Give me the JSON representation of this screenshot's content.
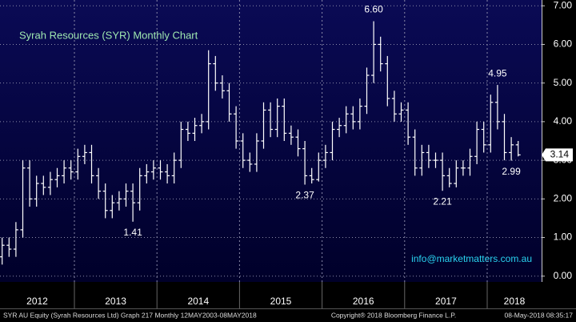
{
  "chart_data": {
    "type": "ohlc",
    "title": "Syrah Resources (SYR) Monthly Chart",
    "watermark": "info@marketmatters.com.au",
    "footer_left": "SYR AU Equity (Syrah Resources Ltd) Graph 217  Monthly 12MAY2003-08MAY2018",
    "footer_center": "Copyright® 2018 Bloomberg Finance L.P.",
    "footer_right": "08-May-2018 08:35:17",
    "x_labels": [
      "2012",
      "2013",
      "2014",
      "2015",
      "2016",
      "2017",
      "2018"
    ],
    "color": "#ffffff",
    "grid": true,
    "ylim": [
      -0.15,
      7.15
    ],
    "yticks": [
      {
        "value": 0,
        "label": "0.00"
      },
      {
        "value": 1,
        "label": "1.00"
      },
      {
        "value": 2,
        "label": "2.00"
      },
      {
        "value": 3,
        "label": "3.00"
      },
      {
        "value": 4,
        "label": "4.00"
      },
      {
        "value": 5,
        "label": "5.00"
      },
      {
        "value": 6,
        "label": "6.00"
      },
      {
        "value": 7,
        "label": "7.00"
      }
    ],
    "open": [
      0.4,
      0.5,
      0.8,
      0.7,
      1.2,
      2.8,
      2.0,
      2.4,
      2.3,
      2.5,
      2.6,
      2.8,
      2.7,
      3.1,
      3.2,
      2.6,
      2.2,
      1.7,
      1.9,
      2.0,
      2.2,
      1.9,
      2.6,
      2.7,
      2.8,
      2.7,
      2.6,
      3.0,
      3.8,
      3.7,
      3.9,
      4.0,
      5.5,
      5.0,
      4.8,
      4.2,
      3.5,
      3.0,
      2.9,
      3.5,
      4.3,
      3.8,
      4.4,
      3.7,
      3.6,
      3.3,
      2.6,
      2.5,
      3.0,
      3.2,
      3.8,
      3.9,
      4.2,
      4.0,
      4.4,
      5.2,
      6.0,
      5.5,
      4.6,
      4.2,
      4.3,
      3.6,
      2.8,
      3.2,
      3.0,
      3.0,
      2.6,
      2.4,
      2.8,
      2.8,
      3.1,
      3.8,
      3.4,
      4.5,
      4.0,
      3.2,
      3.4
    ],
    "high": [
      0.6,
      1.0,
      1.0,
      1.4,
      3.0,
      3.0,
      2.6,
      2.6,
      2.7,
      2.8,
      3.0,
      3.0,
      3.3,
      3.4,
      3.4,
      2.8,
      2.4,
      2.1,
      2.2,
      2.4,
      2.4,
      2.8,
      2.9,
      3.0,
      3.0,
      2.9,
      3.2,
      4.0,
      4.0,
      4.1,
      4.2,
      5.85,
      5.7,
      5.2,
      5.0,
      4.4,
      3.7,
      3.2,
      3.7,
      4.5,
      4.5,
      4.6,
      4.6,
      3.9,
      3.8,
      3.5,
      2.8,
      3.2,
      3.4,
      4.0,
      4.1,
      4.4,
      4.4,
      4.6,
      5.4,
      6.6,
      6.2,
      5.7,
      4.8,
      4.5,
      4.5,
      3.8,
      3.4,
      3.4,
      3.2,
      3.2,
      2.8,
      3.0,
      3.0,
      3.3,
      4.0,
      4.0,
      4.7,
      4.95,
      4.2,
      3.6,
      3.5
    ],
    "low": [
      0.2,
      0.3,
      0.5,
      0.5,
      1.0,
      1.8,
      1.8,
      2.1,
      2.1,
      2.3,
      2.4,
      2.5,
      2.5,
      2.9,
      2.4,
      2.0,
      1.5,
      1.5,
      1.7,
      1.8,
      1.41,
      1.7,
      2.4,
      2.5,
      2.5,
      2.4,
      2.4,
      2.8,
      3.5,
      3.5,
      3.7,
      3.8,
      4.8,
      4.6,
      4.0,
      3.3,
      2.8,
      2.7,
      2.7,
      3.3,
      3.6,
      3.6,
      3.5,
      3.4,
      3.1,
      2.37,
      2.4,
      2.45,
      2.8,
      3.0,
      3.6,
      3.7,
      3.8,
      3.8,
      4.2,
      5.0,
      5.3,
      4.4,
      4.0,
      4.0,
      3.4,
      2.6,
      2.6,
      2.8,
      2.8,
      2.21,
      2.3,
      2.3,
      2.6,
      2.6,
      2.9,
      3.2,
      3.2,
      3.8,
      3.0,
      2.99,
      3.1
    ],
    "close": [
      0.5,
      0.8,
      0.7,
      1.2,
      2.8,
      2.0,
      2.4,
      2.3,
      2.5,
      2.6,
      2.8,
      2.7,
      3.1,
      3.2,
      2.6,
      2.2,
      1.7,
      1.9,
      2.0,
      2.2,
      1.9,
      2.6,
      2.7,
      2.8,
      2.7,
      2.6,
      3.0,
      3.8,
      3.7,
      3.9,
      4.0,
      5.5,
      5.0,
      4.8,
      4.2,
      3.5,
      3.0,
      2.9,
      3.5,
      4.3,
      3.8,
      4.4,
      3.7,
      3.6,
      3.3,
      2.6,
      2.5,
      3.0,
      3.2,
      3.8,
      3.9,
      4.2,
      4.0,
      4.4,
      5.2,
      6.0,
      5.5,
      4.6,
      4.2,
      4.3,
      3.6,
      2.8,
      3.2,
      3.0,
      3.0,
      2.6,
      2.4,
      2.8,
      2.8,
      3.1,
      3.8,
      3.4,
      4.5,
      4.0,
      3.2,
      3.4,
      3.14
    ],
    "annotations": [
      {
        "label": "6.60",
        "value": 6.6
      },
      {
        "label": "1.41",
        "value": 1.41
      },
      {
        "label": "2.37",
        "value": 2.37
      },
      {
        "label": "2.21",
        "value": 2.21
      },
      {
        "label": "4.95",
        "value": 4.95
      },
      {
        "label": "2.99",
        "value": 2.99
      }
    ]
  }
}
